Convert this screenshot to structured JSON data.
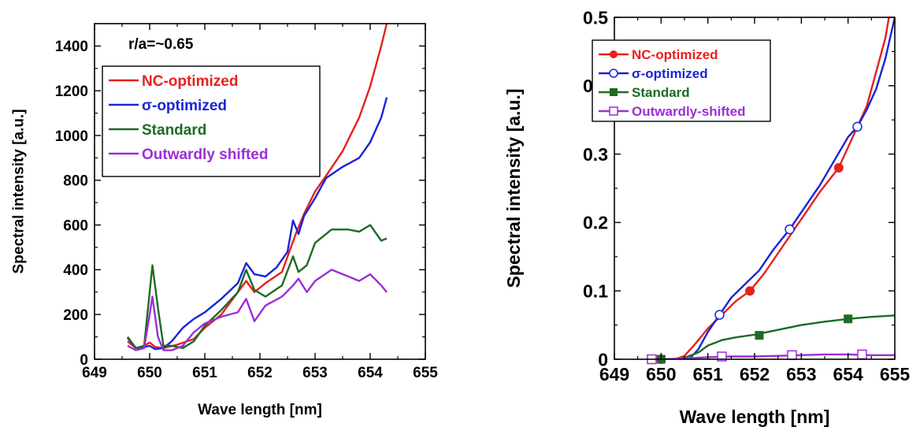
{
  "chart_data": [
    {
      "type": "line",
      "title": "",
      "xlabel": "Wave length [nm]",
      "ylabel": "Spectral intensity [a.u.]",
      "xlim": [
        649,
        655
      ],
      "ylim": [
        0,
        1500
      ],
      "xticks": [
        649,
        650,
        651,
        652,
        653,
        654,
        655
      ],
      "yticks": [
        0,
        200,
        400,
        600,
        800,
        1000,
        1200,
        1400
      ],
      "annotation": "r/a=~0.65",
      "legend_position": "top-left",
      "series": [
        {
          "name": "NC-optimized",
          "color": "#e8201c",
          "x": [
            649.6,
            649.75,
            649.9,
            650.0,
            650.1,
            650.25,
            650.5,
            650.8,
            651.0,
            651.3,
            651.6,
            651.75,
            651.9,
            652.1,
            652.4,
            652.65,
            652.8,
            653.0,
            653.2,
            653.5,
            653.8,
            654.0,
            654.2,
            654.3
          ],
          "y": [
            80,
            50,
            60,
            75,
            55,
            50,
            65,
            90,
            140,
            200,
            300,
            350,
            300,
            340,
            390,
            560,
            650,
            750,
            820,
            930,
            1080,
            1220,
            1400,
            1500
          ]
        },
        {
          "name": "σ-optimized",
          "color": "#1a24d6",
          "x": [
            649.6,
            649.75,
            649.9,
            650.0,
            650.1,
            650.25,
            650.4,
            650.6,
            650.8,
            651.0,
            651.3,
            651.6,
            651.75,
            651.9,
            652.1,
            652.3,
            652.5,
            652.6,
            652.7,
            652.8,
            653.0,
            653.2,
            653.5,
            653.8,
            654.0,
            654.2,
            654.3
          ],
          "y": [
            95,
            50,
            55,
            60,
            45,
            50,
            80,
            140,
            180,
            210,
            270,
            340,
            430,
            380,
            370,
            410,
            480,
            620,
            560,
            640,
            720,
            810,
            860,
            900,
            970,
            1080,
            1170
          ]
        },
        {
          "name": "Standard",
          "color": "#1d6b25",
          "x": [
            649.6,
            649.75,
            649.9,
            650.0,
            650.05,
            650.15,
            650.25,
            650.4,
            650.6,
            650.8,
            651.0,
            651.3,
            651.6,
            651.75,
            651.9,
            652.1,
            652.4,
            652.6,
            652.7,
            652.85,
            653.0,
            653.3,
            653.6,
            653.8,
            654.0,
            654.2,
            654.3
          ],
          "y": [
            100,
            50,
            60,
            300,
            420,
            230,
            60,
            60,
            50,
            80,
            150,
            220,
            300,
            400,
            310,
            280,
            330,
            460,
            390,
            420,
            520,
            580,
            580,
            570,
            600,
            530,
            540
          ]
        },
        {
          "name": "Outwardly shifted",
          "color": "#9b2fd6",
          "x": [
            649.6,
            649.75,
            649.9,
            650.0,
            650.05,
            650.15,
            650.25,
            650.4,
            650.6,
            650.8,
            651.0,
            651.3,
            651.6,
            651.75,
            651.9,
            652.1,
            652.4,
            652.6,
            652.7,
            652.85,
            653.0,
            653.3,
            653.6,
            653.8,
            654.0,
            654.2,
            654.3
          ],
          "y": [
            60,
            40,
            50,
            200,
            280,
            100,
            40,
            40,
            60,
            120,
            160,
            190,
            210,
            270,
            170,
            240,
            280,
            330,
            360,
            300,
            350,
            400,
            370,
            350,
            380,
            330,
            300
          ]
        }
      ]
    },
    {
      "type": "line",
      "title": "",
      "xlabel": "Wave length [nm]",
      "ylabel": "Spectral intensity [a.u.]",
      "xlim": [
        649,
        655
      ],
      "ylim": [
        0,
        0.5
      ],
      "xticks": [
        649,
        650,
        651,
        652,
        653,
        654,
        655
      ],
      "yticks": [
        0,
        0.1,
        0.2,
        0.3,
        0.4,
        0.5
      ],
      "ytick_labels": [
        "0",
        "0.1",
        "0.2",
        "0.3",
        "0.4",
        "0.5"
      ],
      "legend_position": "top-left",
      "series": [
        {
          "name": "NC-optimized",
          "color": "#e8201c",
          "marker": "filled-circle",
          "x": [
            649.8,
            650.0,
            650.3,
            650.5,
            650.7,
            651.0,
            651.3,
            651.6,
            651.9,
            652.2,
            652.5,
            652.8,
            653.1,
            653.4,
            653.8,
            654.0,
            654.2,
            654.4,
            654.6,
            654.8,
            655.0
          ],
          "y": [
            0,
            0,
            0,
            0.005,
            0.02,
            0.045,
            0.065,
            0.085,
            0.1,
            0.125,
            0.155,
            0.185,
            0.215,
            0.245,
            0.28,
            0.31,
            0.34,
            0.37,
            0.42,
            0.47,
            0.55
          ],
          "marker_x": [
            650.0,
            651.9,
            653.8
          ],
          "marker_y": [
            0,
            0.1,
            0.28
          ]
        },
        {
          "name": "σ-optimized",
          "color": "#1a24d6",
          "marker": "open-circle",
          "x": [
            649.8,
            650.0,
            650.3,
            650.6,
            650.8,
            651.0,
            651.25,
            651.5,
            651.8,
            652.1,
            652.4,
            652.75,
            653.1,
            653.4,
            653.7,
            654.0,
            654.2,
            654.4,
            654.6,
            654.8,
            655.0
          ],
          "y": [
            0,
            0,
            0,
            0,
            0.015,
            0.04,
            0.065,
            0.09,
            0.11,
            0.13,
            0.16,
            0.19,
            0.225,
            0.255,
            0.29,
            0.325,
            0.34,
            0.365,
            0.395,
            0.44,
            0.5
          ],
          "marker_x": [
            651.25,
            652.75,
            654.2
          ],
          "marker_y": [
            0.065,
            0.19,
            0.34
          ]
        },
        {
          "name": "Standard",
          "color": "#1d6b25",
          "marker": "filled-square",
          "x": [
            649.8,
            650.0,
            650.3,
            650.5,
            650.8,
            651.0,
            651.3,
            651.6,
            652.0,
            652.5,
            653.0,
            653.5,
            654.0,
            654.5,
            655.0
          ],
          "y": [
            0,
            0,
            0,
            0.002,
            0.01,
            0.02,
            0.028,
            0.032,
            0.036,
            0.043,
            0.05,
            0.055,
            0.059,
            0.062,
            0.064
          ],
          "marker_x": [
            650.0,
            652.1,
            654.0
          ],
          "marker_y": [
            0,
            0.035,
            0.059
          ]
        },
        {
          "name": "Outwardly-shifted",
          "color": "#9b2fd6",
          "marker": "open-square",
          "x": [
            649.8,
            650.0,
            650.5,
            651.0,
            651.5,
            652.0,
            652.5,
            653.0,
            653.5,
            654.0,
            654.5,
            655.0
          ],
          "y": [
            0,
            0,
            0.001,
            0.003,
            0.004,
            0.004,
            0.005,
            0.006,
            0.007,
            0.007,
            0.006,
            0.006
          ],
          "marker_x": [
            649.8,
            651.3,
            652.8,
            654.3
          ],
          "marker_y": [
            0,
            0.004,
            0.006,
            0.007
          ]
        }
      ]
    }
  ]
}
